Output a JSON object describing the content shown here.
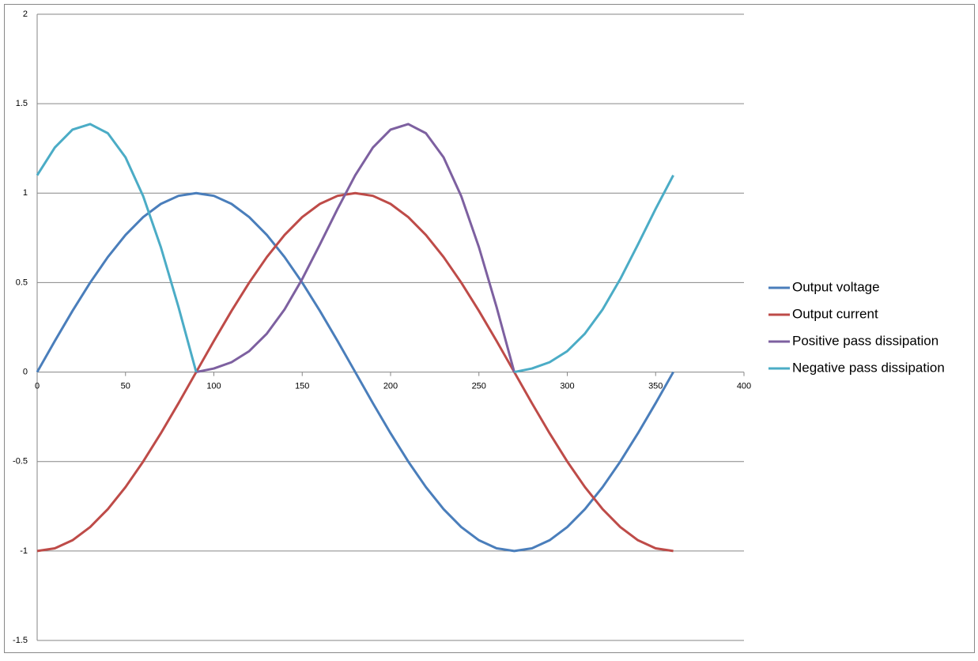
{
  "chart_data": {
    "type": "line",
    "x": [
      0,
      10,
      20,
      30,
      40,
      50,
      60,
      70,
      80,
      90,
      100,
      110,
      120,
      130,
      140,
      150,
      160,
      170,
      180,
      190,
      200,
      210,
      220,
      230,
      240,
      250,
      260,
      270,
      280,
      290,
      300,
      310,
      320,
      330,
      340,
      350,
      360
    ],
    "series": [
      {
        "name": "Output voltage",
        "color": "#4a7ebb",
        "values": [
          0,
          0.174,
          0.342,
          0.5,
          0.643,
          0.766,
          0.866,
          0.94,
          0.985,
          1,
          0.985,
          0.94,
          0.866,
          0.766,
          0.643,
          0.5,
          0.342,
          0.174,
          0,
          -0.174,
          -0.342,
          -0.5,
          -0.643,
          -0.766,
          -0.866,
          -0.94,
          -0.985,
          -1,
          -0.985,
          -0.94,
          -0.866,
          -0.766,
          -0.643,
          -0.5,
          -0.342,
          -0.174,
          0
        ]
      },
      {
        "name": "Output current",
        "color": "#be4b48",
        "values": [
          -1,
          -0.985,
          -0.94,
          -0.866,
          -0.766,
          -0.643,
          -0.5,
          -0.342,
          -0.174,
          0,
          0.174,
          0.342,
          0.5,
          0.643,
          0.766,
          0.866,
          0.94,
          0.985,
          1,
          0.985,
          0.94,
          0.866,
          0.766,
          0.643,
          0.5,
          0.342,
          0.174,
          0,
          -0.174,
          -0.342,
          -0.5,
          -0.643,
          -0.766,
          -0.866,
          -0.94,
          -0.985,
          -1
        ]
      },
      {
        "name": "Positive pass dissipation",
        "color": "#7d60a0",
        "values": [
          null,
          null,
          null,
          null,
          null,
          null,
          null,
          null,
          null,
          0,
          0.02,
          0.055,
          0.117,
          0.215,
          0.35,
          0.52,
          0.713,
          0.912,
          1.1,
          1.255,
          1.355,
          1.386,
          1.335,
          1.2,
          0.983,
          0.698,
          0.363,
          0,
          null,
          null,
          null,
          null,
          null,
          null,
          null,
          null,
          null
        ]
      },
      {
        "name": "Negative pass dissipation",
        "color": "#4bacc6",
        "values": [
          1.1,
          1.255,
          1.355,
          1.386,
          1.335,
          1.2,
          0.983,
          0.698,
          0.363,
          0,
          null,
          null,
          null,
          null,
          null,
          null,
          null,
          null,
          null,
          null,
          null,
          null,
          null,
          null,
          null,
          null,
          null,
          0,
          0.02,
          0.055,
          0.117,
          0.215,
          0.35,
          0.52,
          0.713,
          0.912,
          1.1
        ]
      }
    ],
    "xlim": [
      0,
      400
    ],
    "xticks": [
      0,
      50,
      100,
      150,
      200,
      250,
      300,
      350,
      400
    ],
    "ylim": [
      -1.5,
      2
    ],
    "yticks": [
      2,
      1.5,
      1,
      0.5,
      0,
      -0.5,
      -1,
      -1.5
    ],
    "grid": true,
    "legend": "right"
  }
}
